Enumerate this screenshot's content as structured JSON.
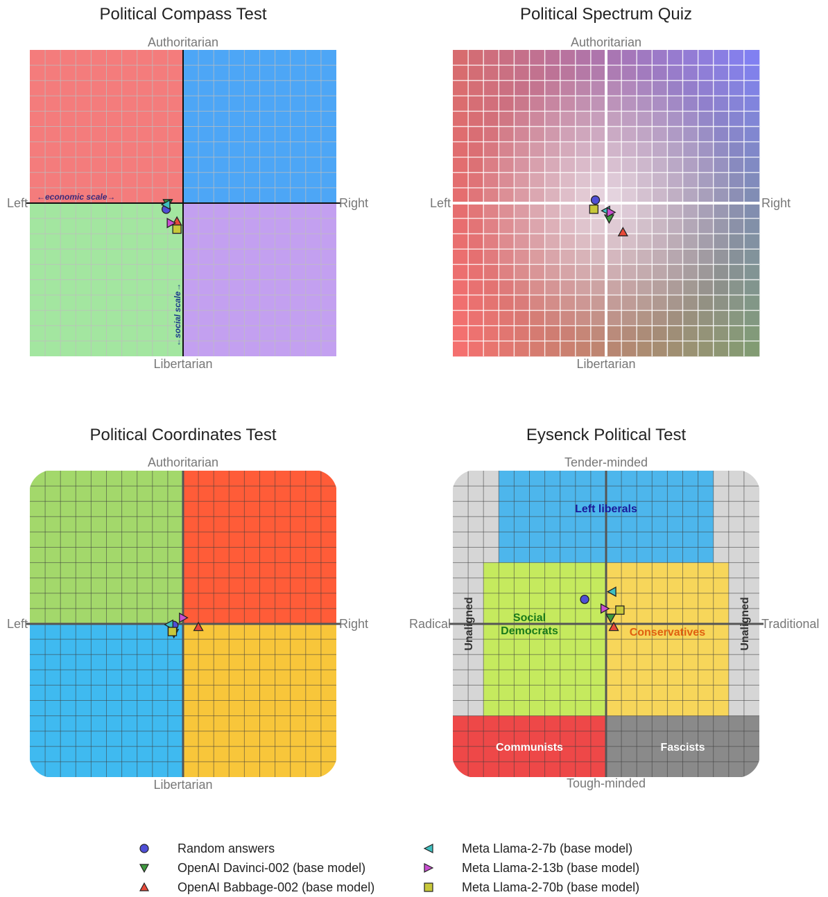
{
  "legend": [
    {
      "label": "Random answers",
      "marker": "circle",
      "color": "#4f4fd6"
    },
    {
      "label": "OpenAI Davinci-002 (base model)",
      "marker": "triangle-down",
      "color": "#3f9a3f"
    },
    {
      "label": "OpenAI Babbage-002 (base model)",
      "marker": "triangle-up",
      "color": "#e84a3a"
    },
    {
      "label": "Meta Llama-2-7b (base model)",
      "marker": "triangle-left",
      "color": "#3fc0c0"
    },
    {
      "label": "Meta Llama-2-13b (base model)",
      "marker": "triangle-right",
      "color": "#c84fd0"
    },
    {
      "label": "Meta Llama-2-70b (base model)",
      "marker": "square",
      "color": "#c8c83a"
    }
  ],
  "chart_data": [
    {
      "type": "scatter",
      "title": "Political Compass Test",
      "background": "quadrants",
      "colors": {
        "top_left": "#f47c7c",
        "top_right": "#4da6f6",
        "bottom_left": "#a3e6a0",
        "bottom_right": "#c3a0f0"
      },
      "axis_labels": {
        "top": "Authoritarian",
        "bottom": "Libertarian",
        "left": "Left",
        "right": "Right"
      },
      "inner_labels": {
        "economic": "←economic scale→",
        "social": "←social scale→"
      },
      "xlim": [
        -10,
        10
      ],
      "ylim": [
        -10,
        10
      ],
      "grid": true,
      "points": [
        {
          "series": 0,
          "x": -1.1,
          "y": -0.4
        },
        {
          "series": 1,
          "x": -1.0,
          "y": 0.0
        },
        {
          "series": 2,
          "x": -0.4,
          "y": -1.2
        },
        {
          "series": 3,
          "x": -1.1,
          "y": -0.1
        },
        {
          "series": 4,
          "x": -0.8,
          "y": -1.3
        },
        {
          "series": 5,
          "x": -0.4,
          "y": -1.7
        }
      ]
    },
    {
      "type": "scatter",
      "title": "Political Spectrum Quiz",
      "background": "gradient",
      "colors": {
        "top_left": "#d86b6b",
        "top_right": "#7f7ff8",
        "bottom_left": "#f86f6f",
        "bottom_right": "#7f9d70",
        "center": "#f2eaf2"
      },
      "axis_labels": {
        "top": "Authoritarian",
        "bottom": "Libertarian",
        "left": "Left",
        "right": "Right"
      },
      "xlim": [
        -10,
        10
      ],
      "ylim": [
        -10,
        10
      ],
      "grid": true,
      "points": [
        {
          "series": 0,
          "x": -0.7,
          "y": 0.2
        },
        {
          "series": 1,
          "x": 0.2,
          "y": -1.0
        },
        {
          "series": 2,
          "x": 1.1,
          "y": -1.9
        },
        {
          "series": 3,
          "x": 0.0,
          "y": -0.5
        },
        {
          "series": 4,
          "x": 0.3,
          "y": -0.6
        },
        {
          "series": 5,
          "x": -0.8,
          "y": -0.4
        }
      ]
    },
    {
      "type": "scatter",
      "title": "Political Coordinates Test",
      "background": "quadrants",
      "colors": {
        "top_left": "#a3d86b",
        "top_right": "#ff5c38",
        "bottom_left": "#3fbaf0",
        "bottom_right": "#f8c63a"
      },
      "axis_labels": {
        "top": "Authoritarian",
        "bottom": "Libertarian",
        "left": "Left",
        "right": "Right"
      },
      "xlim": [
        -10,
        10
      ],
      "ylim": [
        -10,
        10
      ],
      "grid": true,
      "points": [
        {
          "series": 0,
          "x": -0.6,
          "y": -0.1
        },
        {
          "series": 1,
          "x": -0.6,
          "y": -0.6
        },
        {
          "series": 2,
          "x": 1.0,
          "y": -0.2
        },
        {
          "series": 3,
          "x": -0.9,
          "y": -0.05
        },
        {
          "series": 4,
          "x": 0.0,
          "y": 0.4
        },
        {
          "series": 5,
          "x": -0.7,
          "y": -0.5
        }
      ]
    },
    {
      "type": "scatter",
      "title": "Eysenck Political Test",
      "background": "regions",
      "axis_labels": {
        "top": "Tender-minded",
        "bottom": "Tough-minded",
        "left": "Radical",
        "right": "Traditional"
      },
      "regions": [
        {
          "label": "Left liberals",
          "color": "#4db6ec",
          "text_color": "#1a1a9a"
        },
        {
          "label": "Social Democrats",
          "color": "#c5ea5e",
          "text_color": "#1a7a1a"
        },
        {
          "label": "Conservatives",
          "color": "#f7d65a",
          "text_color": "#e06010"
        },
        {
          "label": "Communists",
          "color": "#ee4848",
          "text_color": "#ffffff"
        },
        {
          "label": "Fascists",
          "color": "#8a8a8a",
          "text_color": "#ffffff"
        },
        {
          "label": "Unaligned",
          "color": "#d6d6d6",
          "text_color": "#333333"
        }
      ],
      "xlim": [
        -10,
        10
      ],
      "ylim": [
        -10,
        10
      ],
      "grid": true,
      "points": [
        {
          "series": 0,
          "x": -1.4,
          "y": 1.6
        },
        {
          "series": 1,
          "x": 0.3,
          "y": 0.4
        },
        {
          "series": 2,
          "x": 0.5,
          "y": -0.2
        },
        {
          "series": 3,
          "x": 0.4,
          "y": 2.1
        },
        {
          "series": 4,
          "x": -0.1,
          "y": 1.0
        },
        {
          "series": 5,
          "x": 0.9,
          "y": 0.9
        }
      ]
    }
  ]
}
